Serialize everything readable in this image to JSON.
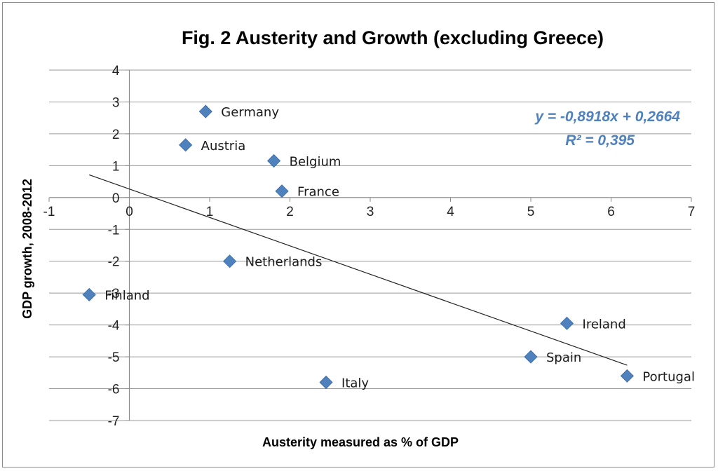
{
  "chart_data": {
    "type": "scatter",
    "title": "Fig. 2  Austerity and Growth (excluding Greece)",
    "xlabel": "Austerity measured as % of GDP",
    "ylabel": "GDP growth, 2008-2012",
    "xlim": [
      -1,
      7
    ],
    "ylim": [
      -7,
      4
    ],
    "x_ticks": [
      "-1",
      "0",
      "1",
      "2",
      "3",
      "4",
      "5",
      "6",
      "7"
    ],
    "y_ticks": [
      "4",
      "3",
      "2",
      "1",
      "0",
      "-1",
      "-2",
      "-3",
      "-4",
      "-5",
      "-6",
      "-7"
    ],
    "grid": "horizontal",
    "marker_color": "#4f81bd",
    "points": [
      {
        "label": "Germany",
        "x": 0.95,
        "y": 2.7
      },
      {
        "label": "Austria",
        "x": 0.7,
        "y": 1.65
      },
      {
        "label": "Belgium",
        "x": 1.8,
        "y": 1.15
      },
      {
        "label": "France",
        "x": 1.9,
        "y": 0.2
      },
      {
        "label": "Netherlands",
        "x": 1.25,
        "y": -2.0
      },
      {
        "label": "Finland",
        "x": -0.5,
        "y": -3.05
      },
      {
        "label": "Ireland",
        "x": 5.45,
        "y": -3.95
      },
      {
        "label": "Spain",
        "x": 5.0,
        "y": -5.0
      },
      {
        "label": "Italy",
        "x": 2.45,
        "y": -5.8
      },
      {
        "label": "Portugal",
        "x": 6.2,
        "y": -5.6
      }
    ],
    "trendline": {
      "type": "linear",
      "slope": -0.8918,
      "intercept": 0.2664,
      "x_range": [
        -0.5,
        6.2
      ],
      "equation": "y = -0,8918x + 0,2664",
      "r_squared": "R² = 0,395"
    }
  }
}
